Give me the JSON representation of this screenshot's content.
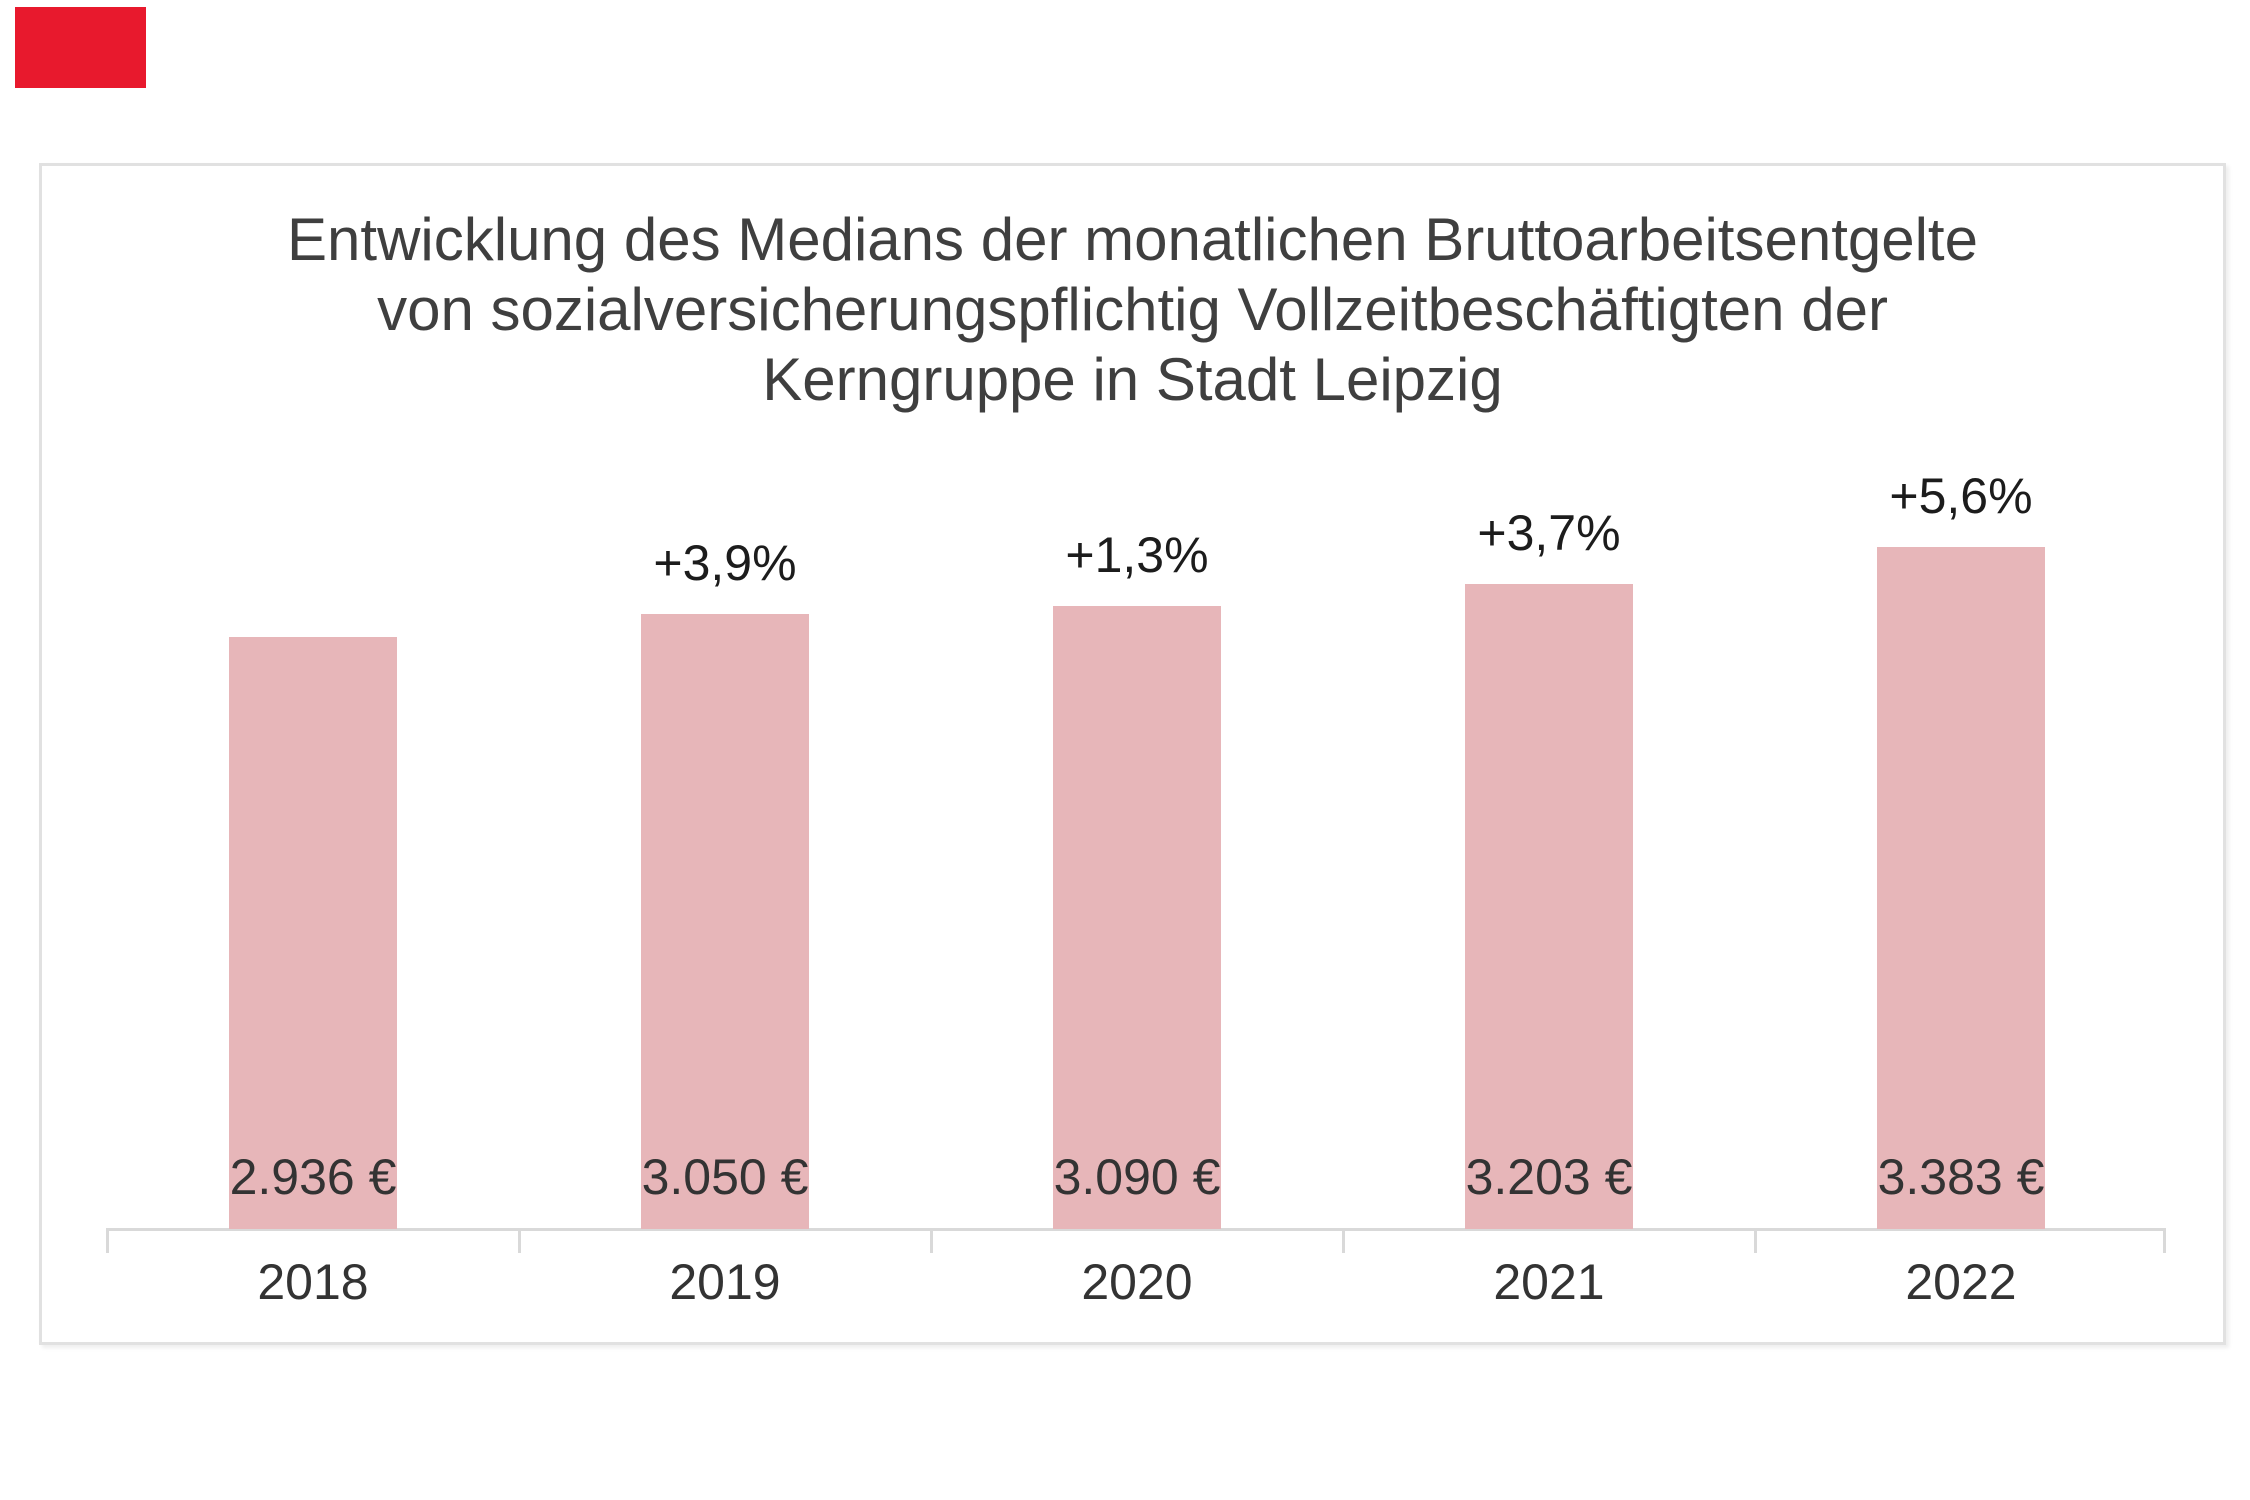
{
  "page": {
    "marker_color": "#e8192d"
  },
  "chart": {
    "title_lines": [
      "Entwicklung des Medians der monatlichen Bruttoarbeitsentgelte",
      "von sozialversicherungspflichtig Vollzeitbeschäftigten der",
      "Kerngruppe in Stadt Leipzig"
    ]
  },
  "chart_data": {
    "type": "bar",
    "title": "Entwicklung des Medians der monatlichen Bruttoarbeitsentgelte von sozialversicherungspflichtig Vollzeitbeschäftigten der Kerngruppe in Stadt Leipzig",
    "categories": [
      "2018",
      "2019",
      "2020",
      "2021",
      "2022"
    ],
    "values": [
      2936,
      3050,
      3090,
      3203,
      3383
    ],
    "value_labels": [
      "2.936 €",
      "3.050 €",
      "3.090 €",
      "3.203 €",
      "3.383 €"
    ],
    "pct_change_labels": [
      "",
      "+3,9%",
      "+1,3%",
      "+3,7%",
      "+5,6%"
    ],
    "xlabel": "",
    "ylabel": "",
    "ylim": [
      0,
      3600
    ],
    "grid": false,
    "legend": false,
    "bar_color": "#e7b6b9",
    "axis_color": "#d9d9d9",
    "label_color": "#333333",
    "pct_label_color": "#1c1c1c",
    "title_color": "#3f3f3f"
  }
}
